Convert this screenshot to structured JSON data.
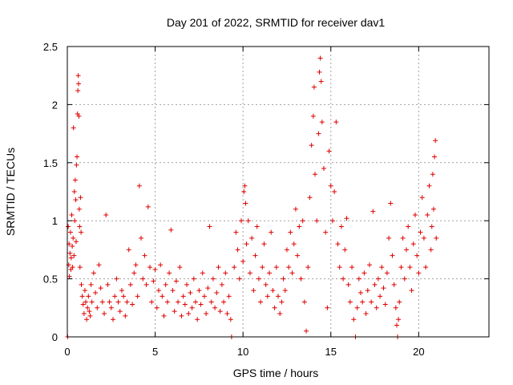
{
  "chart_data": {
    "type": "scatter",
    "title": "Day 201 of 2022, SRMTID for receiver dav1",
    "xlabel": "GPS time / hours",
    "ylabel": "SRMTID / TECUs",
    "xlim": [
      0,
      24
    ],
    "ylim": [
      0,
      2.5
    ],
    "xticks": [
      0,
      5,
      10,
      15,
      20
    ],
    "yticks": [
      0,
      0.5,
      1,
      1.5,
      2,
      2.5
    ],
    "xtick_labels": [
      "0",
      "5",
      "10",
      "15",
      "20"
    ],
    "ytick_labels": [
      "0",
      "0.5",
      "1",
      "1.5",
      "2",
      "2.5"
    ],
    "grid": true,
    "marker": "plus",
    "color": "#e00000",
    "series": [
      {
        "name": "SRMTID",
        "points": [
          [
            0.02,
            0.0
          ],
          [
            0.05,
            0.95
          ],
          [
            0.08,
            0.62
          ],
          [
            0.1,
            0.8
          ],
          [
            0.12,
            0.52
          ],
          [
            0.15,
            0.72
          ],
          [
            0.18,
            0.9
          ],
          [
            0.2,
            0.58
          ],
          [
            0.22,
            0.68
          ],
          [
            0.25,
            1.05
          ],
          [
            0.28,
            0.78
          ],
          [
            0.3,
            0.6
          ],
          [
            0.33,
            0.85
          ],
          [
            0.35,
            1.8
          ],
          [
            0.38,
            0.7
          ],
          [
            0.4,
            1.25
          ],
          [
            0.42,
            1.0
          ],
          [
            0.45,
            1.35
          ],
          [
            0.48,
            1.18
          ],
          [
            0.5,
            0.82
          ],
          [
            0.52,
            1.48
          ],
          [
            0.55,
            1.55
          ],
          [
            0.58,
            1.92
          ],
          [
            0.6,
            2.12
          ],
          [
            0.62,
            2.25
          ],
          [
            0.64,
            2.18
          ],
          [
            0.66,
            1.9
          ],
          [
            0.68,
            1.1
          ],
          [
            0.7,
            0.95
          ],
          [
            0.72,
            0.6
          ],
          [
            0.75,
            1.2
          ],
          [
            0.78,
            0.9
          ],
          [
            0.8,
            0.45
          ],
          [
            0.85,
            0.35
          ],
          [
            0.9,
            0.28
          ],
          [
            0.95,
            0.2
          ],
          [
            1.0,
            0.4
          ],
          [
            1.05,
            0.3
          ],
          [
            1.1,
            0.15
          ],
          [
            1.15,
            0.25
          ],
          [
            1.2,
            0.35
          ],
          [
            1.25,
            0.22
          ],
          [
            1.3,
            0.18
          ],
          [
            1.35,
            0.45
          ],
          [
            1.4,
            0.3
          ],
          [
            1.5,
            0.55
          ],
          [
            1.6,
            0.38
          ],
          [
            1.7,
            0.25
          ],
          [
            1.8,
            0.62
          ],
          [
            1.9,
            0.42
          ],
          [
            2.0,
            0.3
          ],
          [
            2.1,
            0.2
          ],
          [
            2.2,
            1.05
          ],
          [
            2.3,
            0.45
          ],
          [
            2.4,
            0.3
          ],
          [
            2.5,
            0.25
          ],
          [
            2.6,
            0.15
          ],
          [
            2.7,
            0.35
          ],
          [
            2.8,
            0.5
          ],
          [
            2.9,
            0.3
          ],
          [
            3.0,
            0.22
          ],
          [
            3.1,
            0.4
          ],
          [
            3.2,
            0.35
          ],
          [
            3.3,
            0.18
          ],
          [
            3.4,
            0.3
          ],
          [
            3.5,
            0.75
          ],
          [
            3.6,
            0.45
          ],
          [
            3.7,
            0.28
          ],
          [
            3.8,
            0.55
          ],
          [
            3.9,
            0.62
          ],
          [
            4.0,
            0.35
          ],
          [
            4.1,
            1.3
          ],
          [
            4.2,
            0.85
          ],
          [
            4.3,
            0.5
          ],
          [
            4.4,
            0.7
          ],
          [
            4.5,
            0.45
          ],
          [
            4.6,
            1.12
          ],
          [
            4.7,
            0.6
          ],
          [
            4.8,
            0.3
          ],
          [
            4.9,
            0.48
          ],
          [
            5.0,
            0.58
          ],
          [
            5.1,
            0.25
          ],
          [
            5.2,
            0.4
          ],
          [
            5.3,
            0.62
          ],
          [
            5.4,
            0.35
          ],
          [
            5.5,
            0.18
          ],
          [
            5.6,
            0.45
          ],
          [
            5.7,
            0.3
          ],
          [
            5.8,
            0.55
          ],
          [
            5.9,
            0.92
          ],
          [
            6.0,
            0.4
          ],
          [
            6.1,
            0.22
          ],
          [
            6.2,
            0.48
          ],
          [
            6.3,
            0.3
          ],
          [
            6.4,
            0.6
          ],
          [
            6.5,
            0.18
          ],
          [
            6.6,
            0.35
          ],
          [
            6.7,
            0.28
          ],
          [
            6.8,
            0.45
          ],
          [
            6.9,
            0.2
          ],
          [
            7.0,
            0.38
          ],
          [
            7.1,
            0.25
          ],
          [
            7.2,
            0.5
          ],
          [
            7.3,
            0.3
          ],
          [
            7.4,
            0.15
          ],
          [
            7.5,
            0.4
          ],
          [
            7.6,
            0.28
          ],
          [
            7.7,
            0.55
          ],
          [
            7.8,
            0.35
          ],
          [
            7.9,
            0.2
          ],
          [
            8.0,
            0.42
          ],
          [
            8.1,
            0.95
          ],
          [
            8.2,
            0.3
          ],
          [
            8.3,
            0.5
          ],
          [
            8.4,
            0.25
          ],
          [
            8.5,
            0.38
          ],
          [
            8.6,
            0.6
          ],
          [
            8.7,
            0.22
          ],
          [
            8.8,
            0.45
          ],
          [
            8.9,
            0.3
          ],
          [
            9.0,
            0.55
          ],
          [
            9.1,
            0.2
          ],
          [
            9.2,
            0.35
          ],
          [
            9.3,
            0.15
          ],
          [
            9.35,
            0.0
          ],
          [
            9.5,
            0.6
          ],
          [
            9.6,
            0.9
          ],
          [
            9.7,
            0.75
          ],
          [
            9.8,
            0.5
          ],
          [
            9.9,
            1.0
          ],
          [
            10.0,
            0.65
          ],
          [
            10.05,
            1.25
          ],
          [
            10.1,
            1.3
          ],
          [
            10.15,
            1.15
          ],
          [
            10.2,
            0.8
          ],
          [
            10.3,
            1.0
          ],
          [
            10.4,
            0.55
          ],
          [
            10.5,
            0.85
          ],
          [
            10.6,
            0.4
          ],
          [
            10.7,
            0.7
          ],
          [
            10.8,
            0.95
          ],
          [
            10.9,
            0.5
          ],
          [
            11.0,
            0.3
          ],
          [
            11.1,
            0.6
          ],
          [
            11.2,
            0.8
          ],
          [
            11.3,
            0.45
          ],
          [
            11.4,
            0.35
          ],
          [
            11.5,
            0.55
          ],
          [
            11.6,
            0.9
          ],
          [
            11.7,
            0.4
          ],
          [
            11.8,
            0.25
          ],
          [
            11.9,
            0.6
          ],
          [
            12.0,
            0.35
          ],
          [
            12.1,
            0.2
          ],
          [
            12.2,
            0.3
          ],
          [
            12.3,
            0.5
          ],
          [
            12.4,
            0.4
          ],
          [
            12.5,
            0.75
          ],
          [
            12.6,
            0.6
          ],
          [
            12.7,
            0.9
          ],
          [
            12.8,
            0.55
          ],
          [
            12.9,
            0.8
          ],
          [
            13.0,
            1.1
          ],
          [
            13.1,
            0.7
          ],
          [
            13.2,
            0.95
          ],
          [
            13.3,
            0.5
          ],
          [
            13.4,
            1.0
          ],
          [
            13.5,
            0.3
          ],
          [
            13.6,
            0.05
          ],
          [
            13.7,
            0.6
          ],
          [
            13.8,
            1.2
          ],
          [
            13.9,
            1.65
          ],
          [
            14.0,
            1.9
          ],
          [
            14.05,
            2.15
          ],
          [
            14.1,
            1.4
          ],
          [
            14.2,
            1.0
          ],
          [
            14.3,
            1.75
          ],
          [
            14.35,
            2.28
          ],
          [
            14.4,
            2.4
          ],
          [
            14.45,
            2.2
          ],
          [
            14.5,
            1.85
          ],
          [
            14.6,
            1.45
          ],
          [
            14.7,
            0.9
          ],
          [
            14.8,
            0.25
          ],
          [
            14.9,
            1.6
          ],
          [
            15.0,
            1.3
          ],
          [
            15.1,
            1.0
          ],
          [
            15.2,
            1.25
          ],
          [
            15.3,
            1.85
          ],
          [
            15.4,
            0.8
          ],
          [
            15.5,
            0.6
          ],
          [
            15.6,
            0.95
          ],
          [
            15.7,
            0.5
          ],
          [
            15.8,
            0.75
          ],
          [
            15.9,
            1.02
          ],
          [
            16.0,
            0.45
          ],
          [
            16.1,
            0.3
          ],
          [
            16.2,
            0.6
          ],
          [
            16.3,
            0.15
          ],
          [
            16.4,
            0.0
          ],
          [
            16.5,
            0.25
          ],
          [
            16.6,
            0.5
          ],
          [
            16.7,
            0.38
          ],
          [
            16.8,
            0.3
          ],
          [
            16.9,
            0.55
          ],
          [
            17.0,
            0.2
          ],
          [
            17.1,
            0.4
          ],
          [
            17.2,
            0.62
          ],
          [
            17.3,
            0.3
          ],
          [
            17.4,
            1.08
          ],
          [
            17.5,
            0.45
          ],
          [
            17.6,
            0.25
          ],
          [
            17.7,
            0.5
          ],
          [
            17.8,
            0.35
          ],
          [
            17.9,
            0.6
          ],
          [
            18.0,
            0.42
          ],
          [
            18.1,
            0.28
          ],
          [
            18.2,
            0.55
          ],
          [
            18.3,
            0.85
          ],
          [
            18.4,
            1.15
          ],
          [
            18.5,
            0.7
          ],
          [
            18.6,
            0.45
          ],
          [
            18.7,
            0.25
          ],
          [
            18.75,
            0.1
          ],
          [
            18.8,
            0.0
          ],
          [
            18.85,
            0.15
          ],
          [
            18.9,
            0.3
          ],
          [
            19.0,
            0.6
          ],
          [
            19.1,
            0.85
          ],
          [
            19.2,
            0.5
          ],
          [
            19.3,
            0.75
          ],
          [
            19.4,
            0.95
          ],
          [
            19.5,
            0.6
          ],
          [
            19.6,
            0.4
          ],
          [
            19.7,
            0.8
          ],
          [
            19.8,
            1.05
          ],
          [
            19.9,
            0.7
          ],
          [
            20.0,
            0.55
          ],
          [
            20.1,
            0.9
          ],
          [
            20.2,
            1.2
          ],
          [
            20.3,
            0.85
          ],
          [
            20.4,
            0.6
          ],
          [
            20.5,
            1.05
          ],
          [
            20.6,
            1.3
          ],
          [
            20.7,
            0.75
          ],
          [
            20.75,
            0.95
          ],
          [
            20.8,
            1.4
          ],
          [
            20.85,
            1.1
          ],
          [
            20.9,
            1.55
          ],
          [
            20.95,
            1.69
          ],
          [
            21.0,
            0.85
          ]
        ]
      }
    ]
  }
}
